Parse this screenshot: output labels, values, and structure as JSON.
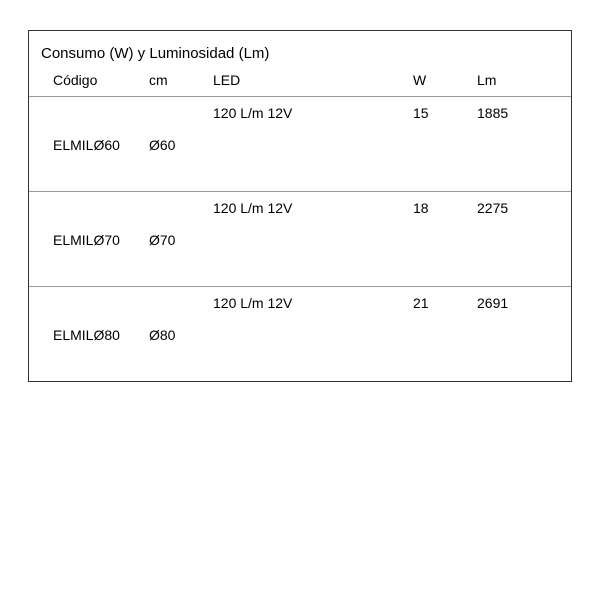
{
  "table": {
    "title": "Consumo (W) y Luminosidad (Lm)",
    "headers": {
      "codigo": "Código",
      "cm": "cm",
      "led": "LED",
      "w": "W",
      "lm": "Lm"
    },
    "groups": [
      {
        "led": "120 L/m 12V",
        "w": "15",
        "lm": "1885",
        "codigo": "ELMILØ60",
        "cm": "Ø60"
      },
      {
        "led": "120 L/m 12V",
        "w": "18",
        "lm": "2275",
        "codigo": "ELMILØ70",
        "cm": "Ø70"
      },
      {
        "led": "120 L/m 12V",
        "w": "21",
        "lm": "2691",
        "codigo": "ELMILØ80",
        "cm": "Ø80"
      }
    ],
    "border_color": "#333333",
    "divider_color": "#999999",
    "text_color": "#000000",
    "background_color": "#ffffff",
    "title_fontsize": 15,
    "cell_fontsize": 14
  }
}
